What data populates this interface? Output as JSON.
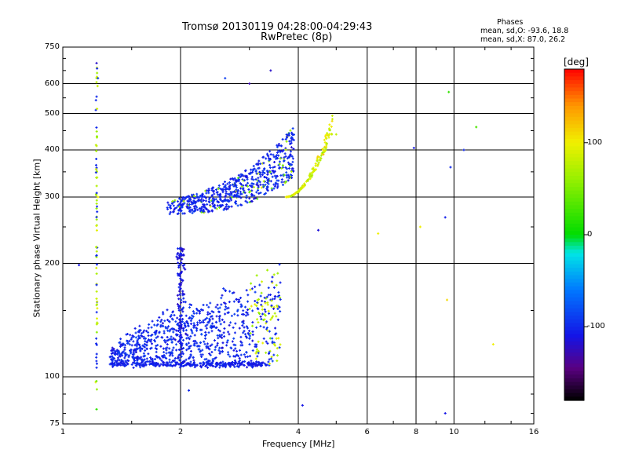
{
  "header": {
    "title_line1": "Tromsø 20130119 04:28:00-04:29:43",
    "title_line2": "RwPretec (8p)"
  },
  "stats": {
    "heading": "Phases",
    "line_o": "mean, sd,O: -93.6, 18.8",
    "line_x": "mean, sd,X:  87.0, 26.2"
  },
  "colorbar": {
    "unit_label": "[deg]",
    "ticks": [
      {
        "value": 100,
        "label": "100"
      },
      {
        "value": 0,
        "label": "0"
      },
      {
        "value": -100,
        "label": "-100"
      }
    ],
    "range": [
      -180,
      180
    ]
  },
  "chart_data": {
    "type": "scatter",
    "title": "Tromsø 20130119 04:28:00-04:29:43",
    "subtitle": "RwPretec (8p)",
    "xlabel": "Frequency [MHz]",
    "ylabel": "Stationary phase Virtual Height [km]",
    "x_scale": "log",
    "y_scale": "log",
    "xlim": [
      1,
      16
    ],
    "ylim": [
      75,
      750
    ],
    "x_ticks": [
      1,
      2,
      4,
      6,
      8,
      10,
      16
    ],
    "x_tick_labels": [
      "1",
      "2",
      "4",
      "6",
      "8",
      "10",
      "16"
    ],
    "y_ticks": [
      75,
      100,
      200,
      300,
      400,
      500,
      600,
      750
    ],
    "y_tick_labels": [
      "75",
      "100",
      "200",
      "300",
      "400",
      "500",
      "600",
      "750"
    ],
    "x_gridlines": [
      2,
      4,
      6,
      8,
      10
    ],
    "y_gridlines": [
      100,
      200,
      300,
      400,
      500,
      600
    ],
    "grid": true,
    "color_variable": "phase [deg]",
    "traces": [
      {
        "id": "E-region echo mass",
        "x_range": [
          1.3,
          3.6
        ],
        "y_range": [
          105,
          220
        ],
        "phase_mean": -95
      },
      {
        "id": "F-region O trace",
        "x_range": [
          1.85,
          3.9
        ],
        "y_range": [
          265,
          450
        ],
        "phase_mean": -93.6
      },
      {
        "id": "F-region X trace",
        "x_range": [
          3.7,
          4.9
        ],
        "y_range": [
          300,
          500
        ],
        "phase_mean": 87.0
      },
      {
        "id": "low-frequency column",
        "x_range": [
          1.2,
          1.25
        ],
        "y_range": [
          80,
          680
        ],
        "phase_mean": 60
      }
    ],
    "sample_points": [
      {
        "x": 1.22,
        "y": 680,
        "phase": -120
      },
      {
        "x": 1.23,
        "y": 620,
        "phase": -95
      },
      {
        "x": 1.22,
        "y": 410,
        "phase": 80
      },
      {
        "x": 1.23,
        "y": 300,
        "phase": 100
      },
      {
        "x": 1.22,
        "y": 155,
        "phase": 70
      },
      {
        "x": 1.1,
        "y": 198,
        "phase": -110
      },
      {
        "x": 1.22,
        "y": 82,
        "phase": 20
      },
      {
        "x": 2.6,
        "y": 620,
        "phase": -90
      },
      {
        "x": 3.4,
        "y": 650,
        "phase": -120
      },
      {
        "x": 3.0,
        "y": 600,
        "phase": -130
      },
      {
        "x": 5.0,
        "y": 440,
        "phase": 80
      },
      {
        "x": 7.9,
        "y": 405,
        "phase": -110
      },
      {
        "x": 10.6,
        "y": 400,
        "phase": -100
      },
      {
        "x": 9.7,
        "y": 570,
        "phase": 20
      },
      {
        "x": 11.4,
        "y": 460,
        "phase": 30
      },
      {
        "x": 9.5,
        "y": 265,
        "phase": -105
      },
      {
        "x": 9.8,
        "y": 360,
        "phase": -100
      },
      {
        "x": 6.4,
        "y": 240,
        "phase": 100
      },
      {
        "x": 8.2,
        "y": 250,
        "phase": 100
      },
      {
        "x": 9.6,
        "y": 160,
        "phase": 110
      },
      {
        "x": 12.6,
        "y": 122,
        "phase": 100
      },
      {
        "x": 9.5,
        "y": 80,
        "phase": -110
      },
      {
        "x": 4.1,
        "y": 84,
        "phase": -110
      },
      {
        "x": 4.5,
        "y": 245,
        "phase": -115
      },
      {
        "x": 2.1,
        "y": 92,
        "phase": -100
      }
    ]
  }
}
